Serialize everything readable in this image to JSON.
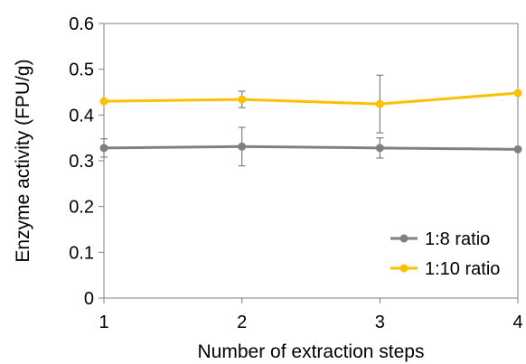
{
  "chart_data": {
    "type": "line",
    "title": "",
    "xlabel": "Number of extraction steps",
    "ylabel": "Enzyme activity (FPU/g)",
    "x": [
      1,
      2,
      3,
      4
    ],
    "x_tick_labels": [
      "1",
      "2",
      "3",
      "4"
    ],
    "y_tick_labels": [
      "0",
      "0.1",
      "0.2",
      "0.3",
      "0.4",
      "0.5",
      "0.6"
    ],
    "xlim": [
      1,
      4
    ],
    "ylim": [
      0,
      0.6
    ],
    "grid": false,
    "legend_position": "bottom-right",
    "series": [
      {
        "name": "1:8 ratio",
        "color": "#808080",
        "values": [
          0.328,
          0.331,
          0.328,
          0.325
        ],
        "error": [
          0.02,
          0.042,
          0.022,
          0.0
        ]
      },
      {
        "name": "1:10 ratio",
        "color": "#FFC000",
        "values": [
          0.43,
          0.434,
          0.424,
          0.448
        ],
        "error": [
          0.0,
          0.018,
          0.063,
          0.0
        ]
      }
    ]
  }
}
